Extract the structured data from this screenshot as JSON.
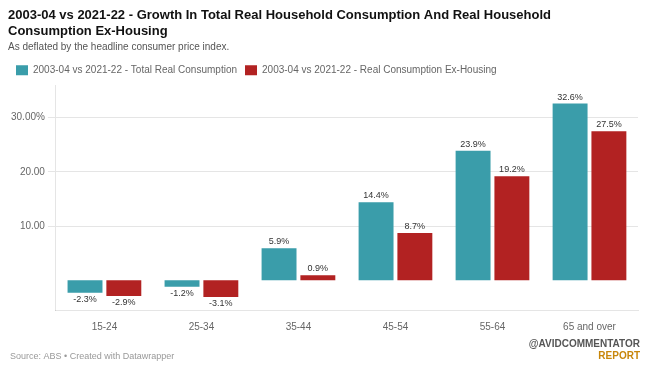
{
  "chart_data": {
    "type": "bar",
    "title": "2003-04 vs 2021-22 - Growth In Total Real Household Consumption And Real Household Consumption Ex-Housing",
    "subtitle": "As deflated by the headline consumer price index.",
    "annotations": [
      "Source: ABS • Created with Datawrapper",
      "@AVIDCOMMENTATOR",
      "REPORT"
    ],
    "categories": [
      "15-24",
      "25-34",
      "35-44",
      "45-54",
      "55-64",
      "65 and over"
    ],
    "series": [
      {
        "name": "2003-04 vs 2021-22 - Total Real Consumption",
        "color": "#3a9daa",
        "values": [
          -2.3,
          -1.2,
          5.9,
          14.4,
          23.9,
          32.6
        ],
        "value_labels": [
          "-2.3%",
          "-1.2%",
          "5.9%",
          "14.4%",
          "23.9%",
          "32.6%"
        ]
      },
      {
        "name": "2003-04 vs 2021-22 - Real Consumption Ex-Housing",
        "color": "#b22222",
        "values": [
          -2.9,
          -3.1,
          0.9,
          8.7,
          19.2,
          27.5
        ],
        "value_labels": [
          "-2.9%",
          "-3.1%",
          "0.9%",
          "8.7%",
          "19.2%",
          "27.5%"
        ]
      }
    ],
    "ylim": [
      -5.5,
      36
    ],
    "yticks": [
      {
        "value": 10.0,
        "label": "10.00"
      },
      {
        "value": 20.0,
        "label": "20.00"
      },
      {
        "value": 30.0,
        "label": "30.00%"
      }
    ],
    "grid": true,
    "legend": "top",
    "data_labels": true
  }
}
